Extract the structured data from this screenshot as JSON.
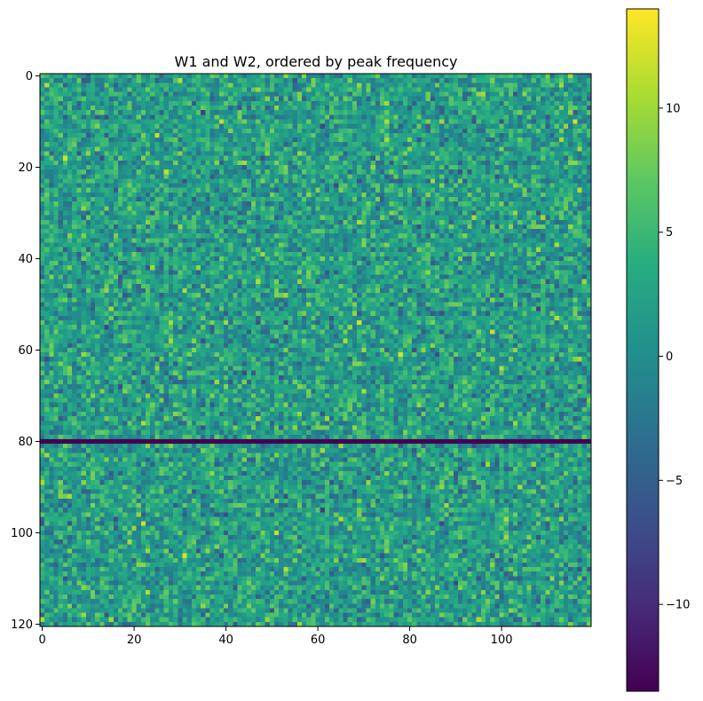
{
  "chart_data": {
    "type": "heatmap",
    "title": "W1 and W2, ordered by peak frequency",
    "xlabel": "",
    "ylabel": "",
    "n_cols": 120,
    "n_rows": 121,
    "xlim": [
      0,
      119
    ],
    "ylim": [
      120,
      0
    ],
    "x_ticks": [
      0,
      20,
      40,
      60,
      80,
      100
    ],
    "y_ticks": [
      0,
      20,
      40,
      60,
      80,
      100,
      120
    ],
    "separator_row": 80,
    "separator_value": -13.5,
    "colormap": "viridis",
    "colorbar": {
      "min": -13.5,
      "max": 14,
      "ticks": [
        10,
        5,
        0,
        -5,
        -10
      ],
      "tick_labels": [
        "10",
        "5",
        "0",
        "−5",
        "−10"
      ]
    },
    "grid": false
  }
}
